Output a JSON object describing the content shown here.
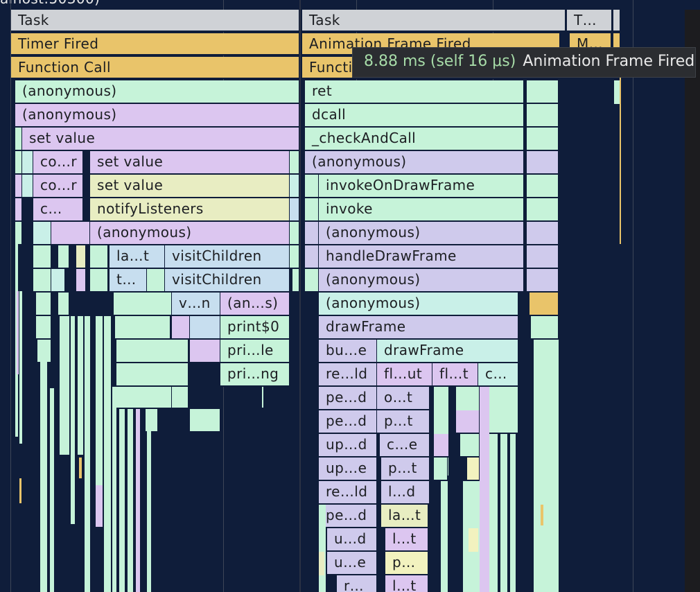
{
  "window": {
    "url_fragment": "alhost:50300)"
  },
  "tooltip": {
    "time": "8.88 ms (self 16 μs)",
    "name": "Animation Frame Fired"
  },
  "rows": {
    "tasks": [
      "Task",
      "Task",
      "T…"
    ],
    "row1": [
      "Timer Fired",
      "Animation Frame Fired",
      "M…"
    ],
    "row2": [
      "Function Call",
      "Functi"
    ],
    "left": [
      "(anonymous)",
      "(anonymous)",
      "set value",
      "co…r",
      "set value",
      "co…r",
      "set value",
      "c…",
      "notifyListeners",
      "(anonymous)",
      "la…t",
      "visitChildren",
      "t…",
      "visitChildren",
      "v…n",
      "(an…s)",
      "print$0",
      "pri…le",
      "pri…ng"
    ],
    "right": [
      "ret",
      "dcall",
      "_checkAndCall",
      "(anonymous)",
      "invokeOnDrawFrame",
      "invoke",
      "(anonymous)",
      "handleDrawFrame",
      "(anonymous)",
      "(anonymous)",
      "drawFrame",
      "bu…e",
      "drawFrame",
      "re…ld",
      "fl…ut",
      "fl…t",
      "c…",
      "pe…d",
      "o…t",
      "pe…d",
      "p…t",
      "up…d",
      "c…e",
      "up…e",
      "p…t",
      "re…ld",
      "l…d",
      "pe…d",
      "la…t",
      "u…d",
      "l…t",
      "u…e",
      "p…",
      "r…",
      "l…t"
    ]
  },
  "colors": {
    "background": "#0f1d3a",
    "scripting": "#dcc6f0",
    "task": "#cfd2d6",
    "timer": "#e9c46a"
  }
}
